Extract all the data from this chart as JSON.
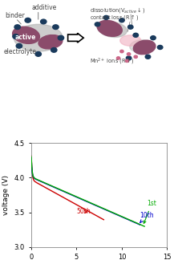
{
  "fig_width": 2.17,
  "fig_height": 3.24,
  "dpi": 100,
  "plot_ylim": [
    3.0,
    4.5
  ],
  "plot_xlim": [
    0,
    15
  ],
  "plot_yticks": [
    3.0,
    3.5,
    4.0,
    4.5
  ],
  "plot_xticks": [
    0,
    5,
    10,
    15
  ],
  "plot_xlabel": "capacity (Ah/m²)",
  "plot_ylabel": "voltage (V)",
  "curve1_color": "#00aa00",
  "curve2_color": "#0000cc",
  "curve3_color": "#cc0000",
  "label1": "1st",
  "label2": "10th",
  "label3": "50th",
  "active_color": "#8B4B6B",
  "additive_color": "#1a3a5c",
  "mn_ion_color": "#cc6688"
}
